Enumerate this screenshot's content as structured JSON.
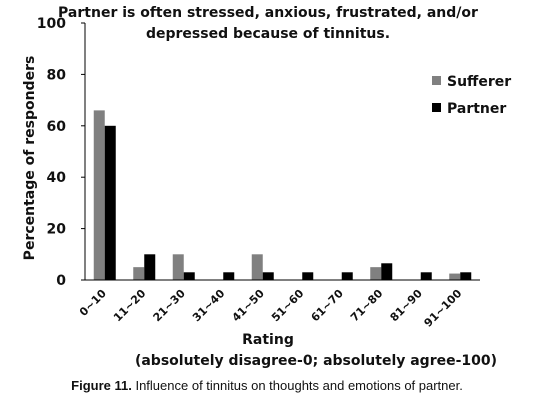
{
  "caption": {
    "label": "Figure 11.",
    "text": "Influence of tinnitus on thoughts and emotions of partner."
  },
  "chart_data": {
    "type": "bar",
    "title": [
      "Partner is often stressed, anxious, frustrated, and/or",
      "depressed because of tinnitus."
    ],
    "xlabel": "Rating",
    "xlabel_note": "(absolutely disagree-0; absolutely agree-100)",
    "ylabel": "Percentage of responders",
    "ylim": [
      0,
      100
    ],
    "yticks": [
      0,
      20,
      40,
      60,
      80,
      100
    ],
    "categories": [
      "0~10",
      "11~20",
      "21~30",
      "31~40",
      "41~50",
      "51~60",
      "61~70",
      "71~80",
      "81~90",
      "91~100"
    ],
    "series": [
      {
        "name": "Sufferer",
        "color": "#808080",
        "values": [
          66,
          5,
          10,
          0,
          10,
          0,
          0,
          5,
          0,
          2.5
        ]
      },
      {
        "name": "Partner",
        "color": "#000000",
        "values": [
          60,
          10,
          3,
          3,
          3,
          3,
          3,
          6.5,
          3,
          3
        ]
      }
    ],
    "legend_position": "right",
    "grid": false
  }
}
